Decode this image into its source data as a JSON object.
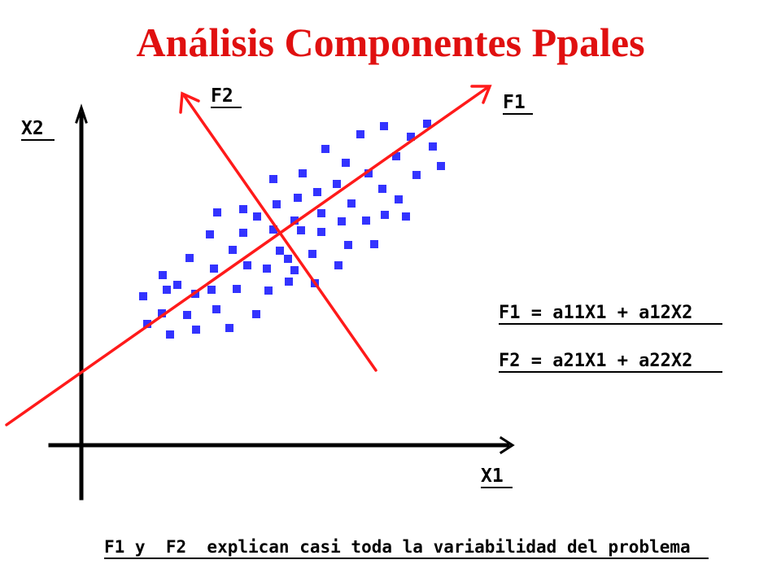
{
  "title": "Análisis Componentes Ppales",
  "labels": {
    "y_axis": "X2",
    "x_axis": "X1",
    "pc1": "F1",
    "pc2": "F2"
  },
  "equations": [
    "F1 = a11X1 + a12X2",
    "F2 = a21X1 + a22X2"
  ],
  "caption": "F1 y  F2  explican casi toda la variabilidad del problema",
  "colors": {
    "title": "#e01010",
    "component_arrows": "#ff1a1a",
    "points": "#3333ff",
    "axes": "#000000"
  }
}
